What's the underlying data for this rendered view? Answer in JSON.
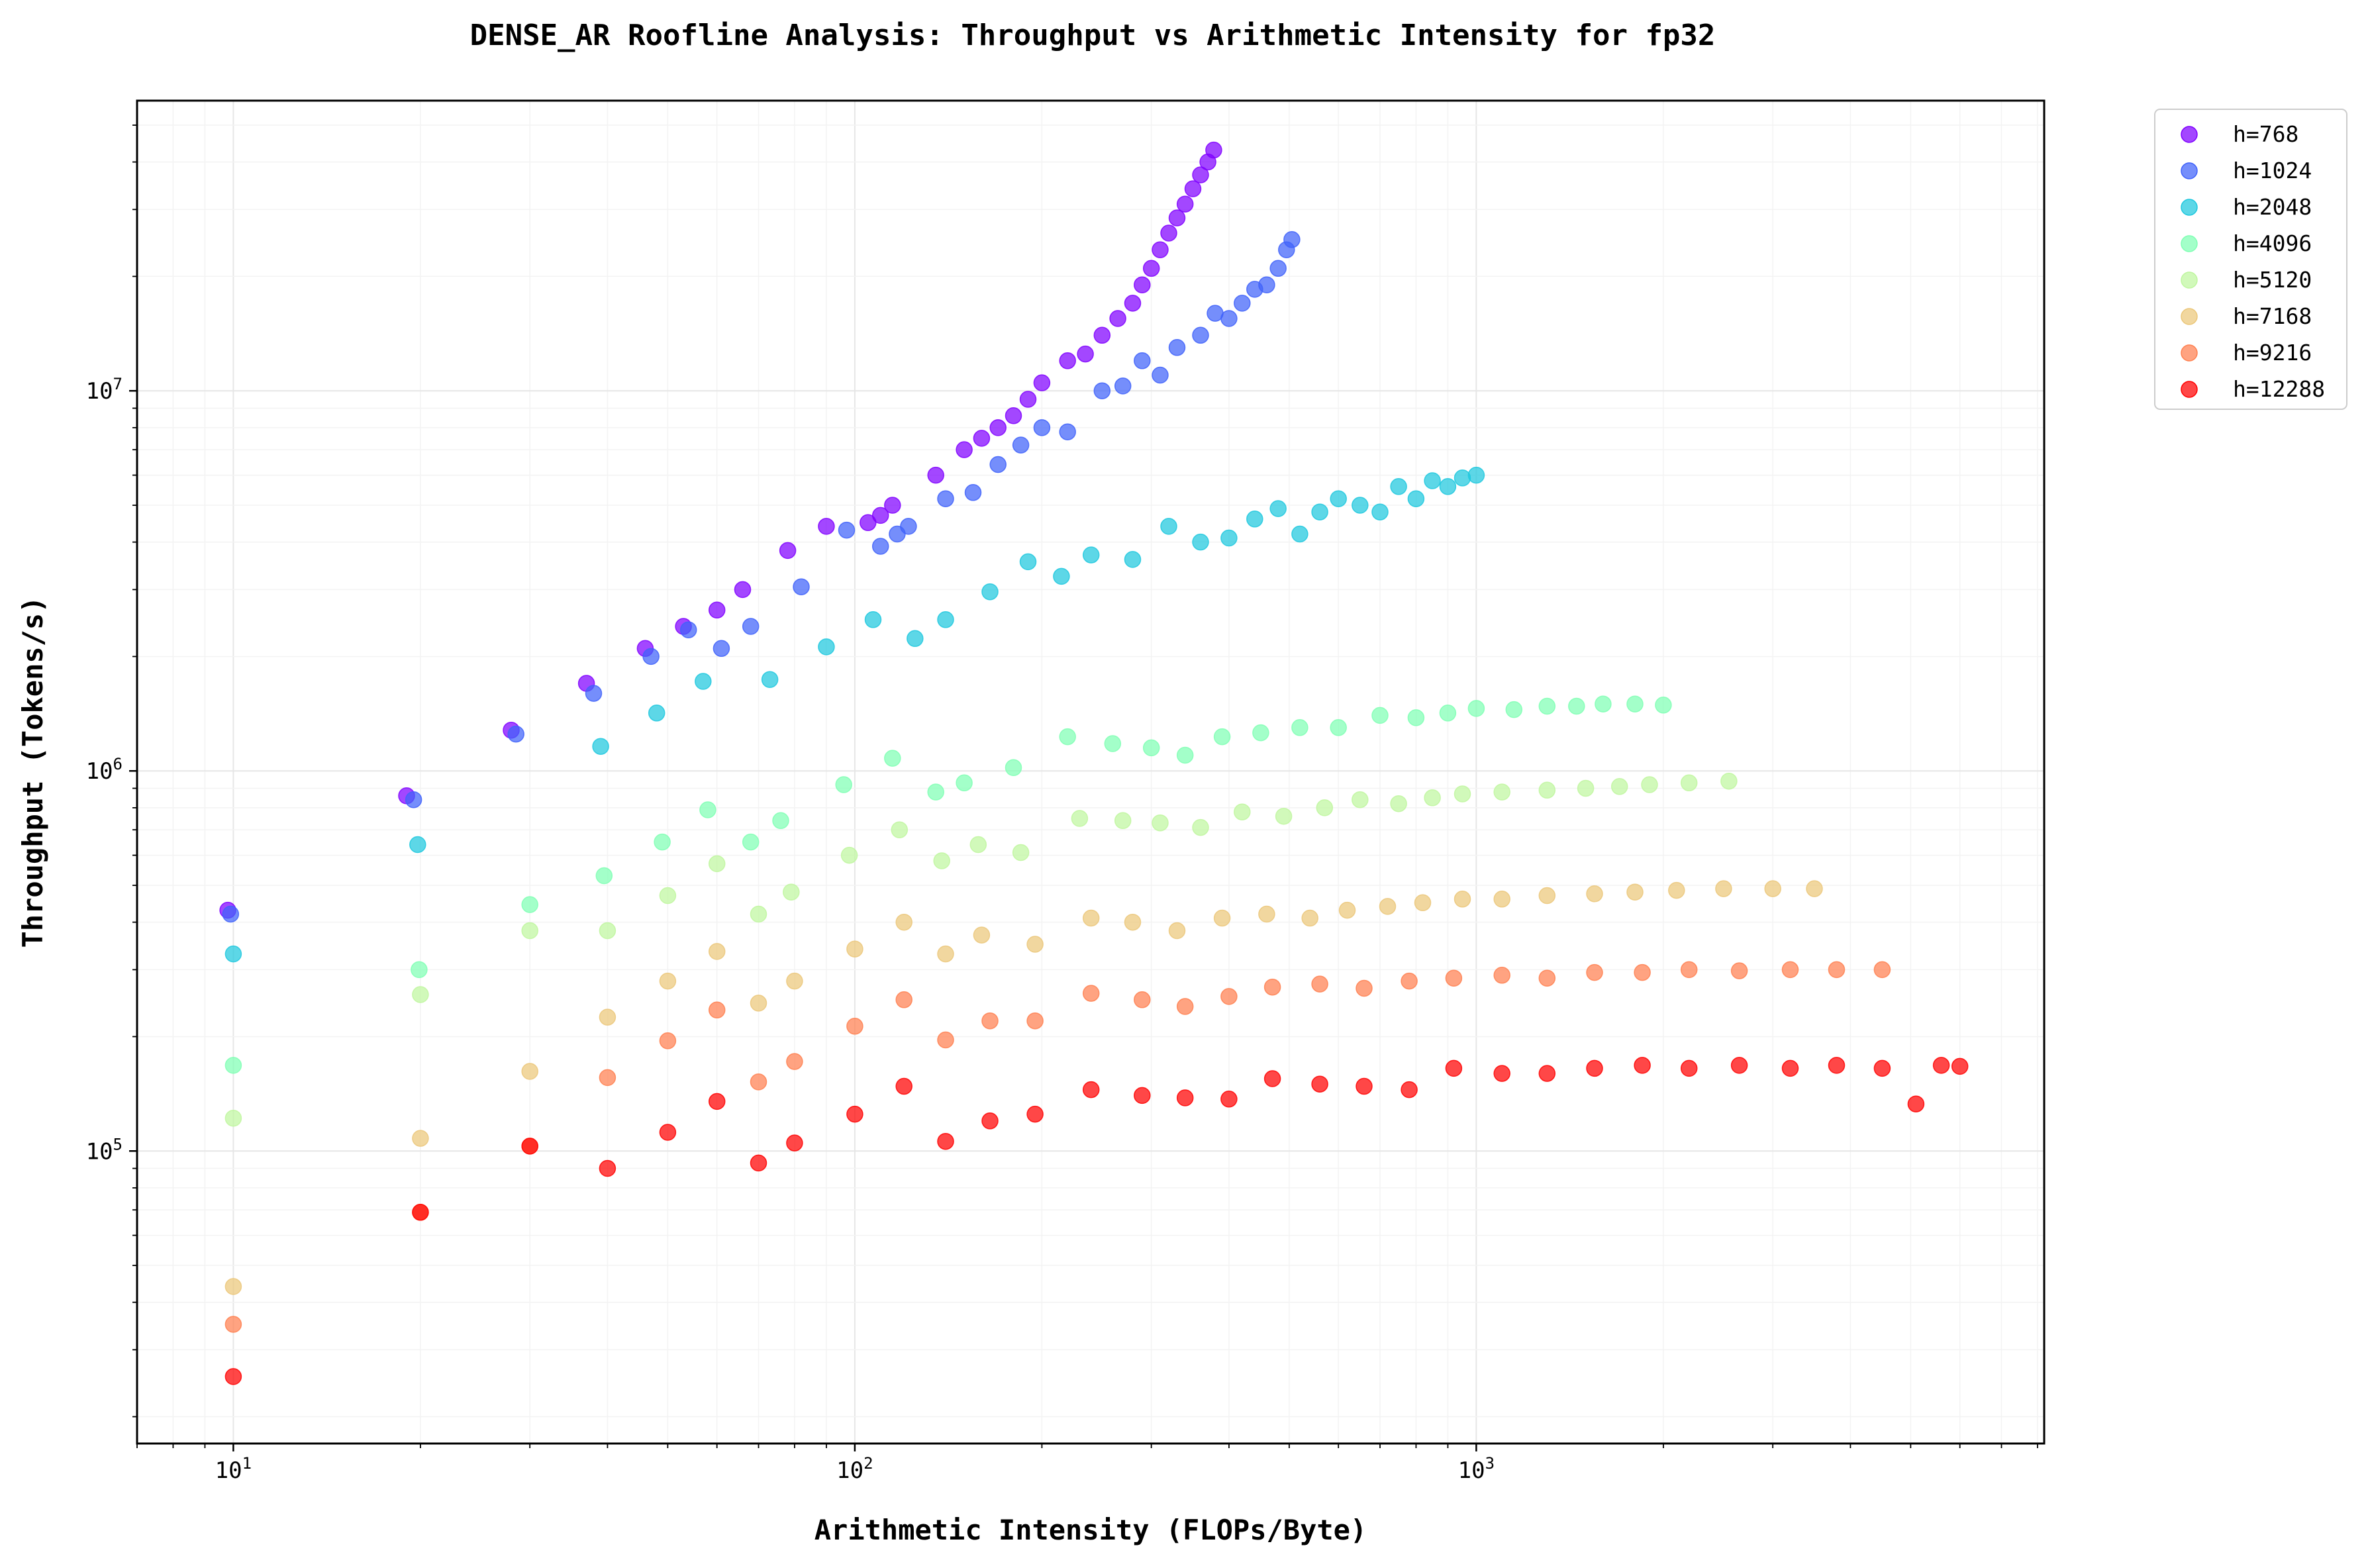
{
  "chart_data": {
    "type": "scatter",
    "title": "DENSE_AR Roofline Analysis: Throughput vs Arithmetic Intensity for fp32",
    "xlabel": "Arithmetic Intensity (FLOPs/Byte)",
    "ylabel": "Throughput (Tokens/s)",
    "xscale": "log",
    "yscale": "log",
    "xlim": [
      7,
      8200
    ],
    "ylim": [
      17000,
      58000000
    ],
    "x_ticks": [
      {
        "value": 10,
        "base": "10",
        "exp": "1"
      },
      {
        "value": 100,
        "base": "10",
        "exp": "2"
      },
      {
        "value": 1000,
        "base": "10",
        "exp": "3"
      }
    ],
    "y_ticks": [
      {
        "value": 100000,
        "base": "10",
        "exp": "5"
      },
      {
        "value": 1000000,
        "base": "10",
        "exp": "6"
      },
      {
        "value": 10000000,
        "base": "10",
        "exp": "7"
      }
    ],
    "grid": true,
    "legend_position": "upper-right-outside",
    "series": [
      {
        "name": "h=768",
        "color": "#8000ff",
        "points": [
          [
            9.8,
            430000
          ],
          [
            19,
            860000
          ],
          [
            28,
            1280000
          ],
          [
            37,
            1700000
          ],
          [
            46,
            2100000
          ],
          [
            53,
            2400000
          ],
          [
            60,
            2650000
          ],
          [
            66,
            3000000
          ],
          [
            78,
            3800000
          ],
          [
            90,
            4400000
          ],
          [
            105,
            4500000
          ],
          [
            110,
            4700000
          ],
          [
            115,
            5000000
          ],
          [
            135,
            6000000
          ],
          [
            150,
            7000000
          ],
          [
            160,
            7500000
          ],
          [
            170,
            8000000
          ],
          [
            180,
            8600000
          ],
          [
            190,
            9500000
          ],
          [
            200,
            10500000
          ],
          [
            220,
            12000000
          ],
          [
            235,
            12500000
          ],
          [
            250,
            14000000
          ],
          [
            265,
            15500000
          ],
          [
            280,
            17000000
          ],
          [
            290,
            19000000
          ],
          [
            300,
            21000000
          ],
          [
            310,
            23500000
          ],
          [
            320,
            26000000
          ],
          [
            330,
            28500000
          ],
          [
            340,
            31000000
          ],
          [
            350,
            34000000
          ],
          [
            360,
            37000000
          ],
          [
            370,
            40000000
          ],
          [
            378,
            43000000
          ]
        ]
      },
      {
        "name": "h=1024",
        "color": "#4062fa",
        "points": [
          [
            9.9,
            420000
          ],
          [
            19.5,
            840000
          ],
          [
            28.5,
            1250000
          ],
          [
            38,
            1600000
          ],
          [
            47,
            2000000
          ],
          [
            54,
            2350000
          ],
          [
            61,
            2100000
          ],
          [
            68,
            2400000
          ],
          [
            82,
            3050000
          ],
          [
            97,
            4300000
          ],
          [
            110,
            3900000
          ],
          [
            117,
            4200000
          ],
          [
            122,
            4400000
          ],
          [
            140,
            5200000
          ],
          [
            155,
            5400000
          ],
          [
            170,
            6400000
          ],
          [
            185,
            7200000
          ],
          [
            200,
            8000000
          ],
          [
            220,
            7800000
          ],
          [
            250,
            10000000
          ],
          [
            270,
            10300000
          ],
          [
            290,
            12000000
          ],
          [
            310,
            11000000
          ],
          [
            330,
            13000000
          ],
          [
            360,
            14000000
          ],
          [
            380,
            16000000
          ],
          [
            400,
            15500000
          ],
          [
            420,
            17000000
          ],
          [
            440,
            18500000
          ],
          [
            460,
            19000000
          ],
          [
            480,
            21000000
          ],
          [
            495,
            23500000
          ],
          [
            505,
            25000000
          ]
        ]
      },
      {
        "name": "h=2048",
        "color": "#1fc8de",
        "points": [
          [
            10,
            330000
          ],
          [
            19.8,
            640000
          ],
          [
            39,
            1160000
          ],
          [
            48,
            1420000
          ],
          [
            57,
            1720000
          ],
          [
            73,
            1740000
          ],
          [
            90,
            2120000
          ],
          [
            107,
            2500000
          ],
          [
            125,
            2230000
          ],
          [
            140,
            2500000
          ],
          [
            165,
            2960000
          ],
          [
            190,
            3550000
          ],
          [
            215,
            3250000
          ],
          [
            240,
            3700000
          ],
          [
            280,
            3600000
          ],
          [
            320,
            4400000
          ],
          [
            360,
            4000000
          ],
          [
            400,
            4100000
          ],
          [
            440,
            4600000
          ],
          [
            480,
            4900000
          ],
          [
            520,
            4200000
          ],
          [
            560,
            4800000
          ],
          [
            600,
            5200000
          ],
          [
            650,
            5000000
          ],
          [
            700,
            4800000
          ],
          [
            750,
            5600000
          ],
          [
            800,
            5200000
          ],
          [
            850,
            5800000
          ],
          [
            900,
            5600000
          ],
          [
            950,
            5900000
          ],
          [
            1000,
            6000000
          ]
        ]
      },
      {
        "name": "h=4096",
        "color": "#80ffb4",
        "points": [
          [
            10,
            168000
          ],
          [
            19.9,
            300000
          ],
          [
            30,
            445000
          ],
          [
            39.5,
            530000
          ],
          [
            49,
            650000
          ],
          [
            58,
            790000
          ],
          [
            68,
            650000
          ],
          [
            76,
            740000
          ],
          [
            96,
            920000
          ],
          [
            115,
            1080000
          ],
          [
            135,
            880000
          ],
          [
            150,
            930000
          ],
          [
            180,
            1020000
          ],
          [
            220,
            1230000
          ],
          [
            260,
            1180000
          ],
          [
            300,
            1150000
          ],
          [
            340,
            1100000
          ],
          [
            390,
            1230000
          ],
          [
            450,
            1260000
          ],
          [
            520,
            1300000
          ],
          [
            600,
            1300000
          ],
          [
            700,
            1400000
          ],
          [
            800,
            1380000
          ],
          [
            900,
            1420000
          ],
          [
            1000,
            1460000
          ],
          [
            1150,
            1450000
          ],
          [
            1300,
            1480000
          ],
          [
            1450,
            1480000
          ],
          [
            1600,
            1500000
          ],
          [
            1800,
            1500000
          ],
          [
            2000,
            1490000
          ]
        ]
      },
      {
        "name": "h=5120",
        "color": "#bff69f",
        "points": [
          [
            10,
            122000
          ],
          [
            20,
            258000
          ],
          [
            30,
            380000
          ],
          [
            40,
            380000
          ],
          [
            50,
            470000
          ],
          [
            60,
            570000
          ],
          [
            70,
            420000
          ],
          [
            79,
            480000
          ],
          [
            98,
            600000
          ],
          [
            118,
            700000
          ],
          [
            138,
            580000
          ],
          [
            158,
            640000
          ],
          [
            185,
            610000
          ],
          [
            230,
            750000
          ],
          [
            270,
            740000
          ],
          [
            310,
            730000
          ],
          [
            360,
            710000
          ],
          [
            420,
            780000
          ],
          [
            490,
            760000
          ],
          [
            570,
            800000
          ],
          [
            650,
            840000
          ],
          [
            750,
            820000
          ],
          [
            850,
            850000
          ],
          [
            950,
            870000
          ],
          [
            1100,
            880000
          ],
          [
            1300,
            890000
          ],
          [
            1500,
            900000
          ],
          [
            1700,
            910000
          ],
          [
            1900,
            920000
          ],
          [
            2200,
            930000
          ],
          [
            2550,
            940000
          ]
        ]
      },
      {
        "name": "h=7168",
        "color": "#ebc77a",
        "points": [
          [
            10,
            44000
          ],
          [
            20,
            108000
          ],
          [
            30,
            162000
          ],
          [
            40,
            225000
          ],
          [
            50,
            280000
          ],
          [
            60,
            335000
          ],
          [
            70,
            245000
          ],
          [
            80,
            280000
          ],
          [
            100,
            340000
          ],
          [
            120,
            400000
          ],
          [
            140,
            330000
          ],
          [
            160,
            370000
          ],
          [
            195,
            350000
          ],
          [
            240,
            410000
          ],
          [
            280,
            400000
          ],
          [
            330,
            380000
          ],
          [
            390,
            410000
          ],
          [
            460,
            420000
          ],
          [
            540,
            410000
          ],
          [
            620,
            430000
          ],
          [
            720,
            440000
          ],
          [
            820,
            450000
          ],
          [
            950,
            460000
          ],
          [
            1100,
            460000
          ],
          [
            1300,
            470000
          ],
          [
            1550,
            475000
          ],
          [
            1800,
            480000
          ],
          [
            2100,
            485000
          ],
          [
            2500,
            490000
          ],
          [
            3000,
            490000
          ],
          [
            3500,
            490000
          ]
        ]
      },
      {
        "name": "h=9216",
        "color": "#ff8050",
        "points": [
          [
            10,
            35000
          ],
          [
            20,
            69000
          ],
          [
            30,
            103000
          ],
          [
            40,
            156000
          ],
          [
            50,
            195000
          ],
          [
            60,
            235000
          ],
          [
            70,
            152000
          ],
          [
            80,
            172000
          ],
          [
            100,
            213000
          ],
          [
            120,
            250000
          ],
          [
            140,
            196000
          ],
          [
            165,
            220000
          ],
          [
            195,
            220000
          ],
          [
            240,
            260000
          ],
          [
            290,
            250000
          ],
          [
            340,
            240000
          ],
          [
            400,
            255000
          ],
          [
            470,
            270000
          ],
          [
            560,
            275000
          ],
          [
            660,
            268000
          ],
          [
            780,
            280000
          ],
          [
            920,
            285000
          ],
          [
            1100,
            290000
          ],
          [
            1300,
            285000
          ],
          [
            1550,
            295000
          ],
          [
            1850,
            295000
          ],
          [
            2200,
            300000
          ],
          [
            2650,
            298000
          ],
          [
            3200,
            300000
          ],
          [
            3800,
            300000
          ],
          [
            4500,
            300000
          ]
        ]
      },
      {
        "name": "h=12288",
        "color": "#ff0000",
        "points": [
          [
            10,
            25500
          ],
          [
            20,
            69000
          ],
          [
            30,
            103000
          ],
          [
            40,
            90000
          ],
          [
            50,
            112000
          ],
          [
            60,
            135000
          ],
          [
            70,
            93000
          ],
          [
            80,
            105000
          ],
          [
            100,
            125000
          ],
          [
            120,
            148000
          ],
          [
            140,
            106000
          ],
          [
            165,
            120000
          ],
          [
            195,
            125000
          ],
          [
            240,
            145000
          ],
          [
            290,
            140000
          ],
          [
            340,
            138000
          ],
          [
            400,
            137000
          ],
          [
            470,
            155000
          ],
          [
            560,
            150000
          ],
          [
            660,
            148000
          ],
          [
            780,
            145000
          ],
          [
            920,
            165000
          ],
          [
            1100,
            160000
          ],
          [
            1300,
            160000
          ],
          [
            1550,
            165000
          ],
          [
            1850,
            168000
          ],
          [
            2200,
            165000
          ],
          [
            2650,
            168000
          ],
          [
            3200,
            165000
          ],
          [
            3800,
            168000
          ],
          [
            4500,
            165000
          ],
          [
            5100,
            133000
          ],
          [
            5600,
            168000
          ],
          [
            6000,
            167000
          ]
        ]
      }
    ]
  }
}
